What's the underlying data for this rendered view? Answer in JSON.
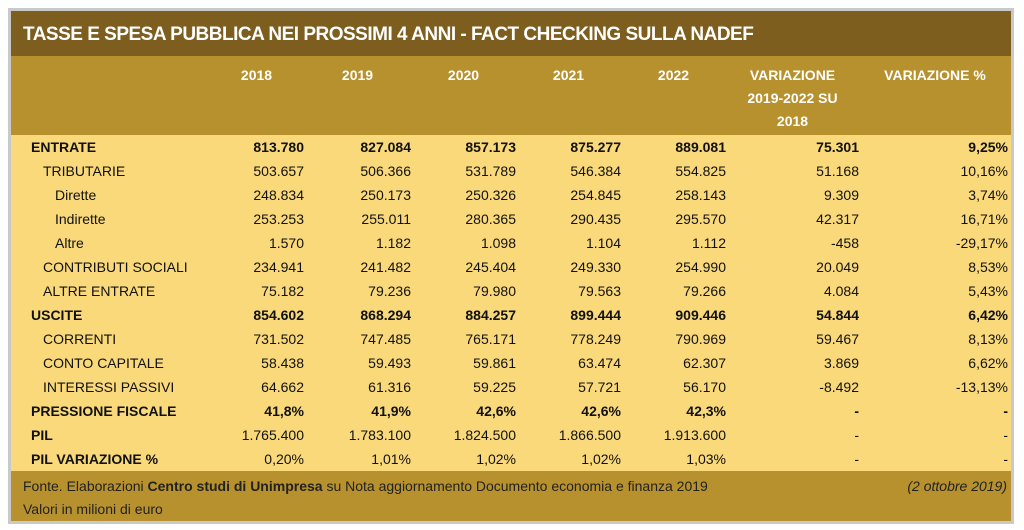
{
  "title": "TASSE E SPESA PUBBLICA NEI PROSSIMI 4 ANNI - FACT CHECKING SULLA NADEF",
  "headers": [
    "",
    "2018",
    "2019",
    "2020",
    "2021",
    "2022",
    "VARIAZIONE 2019-2022 SU 2018",
    "VARIAZIONE %"
  ],
  "rows": [
    {
      "label": "ENTRATE",
      "level": 0,
      "bold": true,
      "values": [
        "813.780",
        "827.084",
        "857.173",
        "875.277",
        "889.081",
        "75.301",
        "9,25%"
      ]
    },
    {
      "label": "TRIBUTARIE",
      "level": 1,
      "bold": false,
      "values": [
        "503.657",
        "506.366",
        "531.789",
        "546.384",
        "554.825",
        "51.168",
        "10,16%"
      ]
    },
    {
      "label": "Dirette",
      "level": 2,
      "bold": false,
      "values": [
        "248.834",
        "250.173",
        "250.326",
        "254.845",
        "258.143",
        "9.309",
        "3,74%"
      ]
    },
    {
      "label": "Indirette",
      "level": 2,
      "bold": false,
      "values": [
        "253.253",
        "255.011",
        "280.365",
        "290.435",
        "295.570",
        "42.317",
        "16,71%"
      ]
    },
    {
      "label": "Altre",
      "level": 2,
      "bold": false,
      "values": [
        "1.570",
        "1.182",
        "1.098",
        "1.104",
        "1.112",
        "-458",
        "-29,17%"
      ]
    },
    {
      "label": "CONTRIBUTI SOCIALI",
      "level": 1,
      "bold": false,
      "values": [
        "234.941",
        "241.482",
        "245.404",
        "249.330",
        "254.990",
        "20.049",
        "8,53%"
      ]
    },
    {
      "label": "ALTRE ENTRATE",
      "level": 1,
      "bold": false,
      "values": [
        "75.182",
        "79.236",
        "79.980",
        "79.563",
        "79.266",
        "4.084",
        "5,43%"
      ]
    },
    {
      "label": "USCITE",
      "level": 0,
      "bold": true,
      "values": [
        "854.602",
        "868.294",
        "884.257",
        "899.444",
        "909.446",
        "54.844",
        "6,42%"
      ]
    },
    {
      "label": "CORRENTI",
      "level": 1,
      "bold": false,
      "values": [
        "731.502",
        "747.485",
        "765.171",
        "778.249",
        "790.969",
        "59.467",
        "8,13%"
      ]
    },
    {
      "label": "CONTO CAPITALE",
      "level": 1,
      "bold": false,
      "values": [
        "58.438",
        "59.493",
        "59.861",
        "63.474",
        "62.307",
        "3.869",
        "6,62%"
      ]
    },
    {
      "label": "INTERESSI PASSIVI",
      "level": 1,
      "bold": false,
      "values": [
        "64.662",
        "61.316",
        "59.225",
        "57.721",
        "56.170",
        "-8.492",
        "-13,13%"
      ]
    },
    {
      "label": "PRESSIONE FISCALE",
      "level": 0,
      "bold": true,
      "values": [
        "41,8%",
        "41,9%",
        "42,6%",
        "42,6%",
        "42,3%",
        "-",
        "-"
      ]
    },
    {
      "label": "PIL",
      "level": 0,
      "bold": "label",
      "values": [
        "1.765.400",
        "1.783.100",
        "1.824.500",
        "1.866.500",
        "1.913.600",
        "-",
        "-"
      ]
    },
    {
      "label": "PIL VARIAZIONE %",
      "level": 0,
      "bold": "label",
      "values": [
        "0,20%",
        "1,01%",
        "1,02%",
        "1,02%",
        "1,03%",
        "-",
        "-"
      ]
    }
  ],
  "footer": {
    "prefix": "Fonte. Elaborazioni ",
    "source": "Centro studi di Unimpresa",
    "suffix": " su Nota aggiornamento Documento economia e finanza 2019",
    "date": "(2 ottobre 2019)",
    "note": "Valori in milioni di euro"
  }
}
